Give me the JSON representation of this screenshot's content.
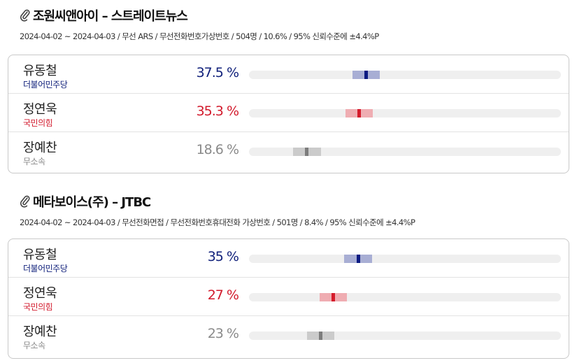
{
  "colors": {
    "dem_text": "#0f1f7a",
    "dem_band": "#a8aed4",
    "dem_point": "#0b1a82",
    "ppp_text": "#d21a2c",
    "ppp_band": "#efadb2",
    "ppp_point": "#d51b2b",
    "ind_text": "#8a8a8a",
    "ind_band": "#cbcbcb",
    "ind_point": "#7c7c7c",
    "track": "#efefef",
    "border": "#c9c9c9"
  },
  "scale_max_percent": 100,
  "margin_of_error": 4.4,
  "polls": [
    {
      "title": "조원씨앤아이 – 스트레이트뉴스",
      "meta": "2024-04-02 ~ 2024-04-03 / 무선 ARS / 무선전화번호가상번호 / 504명 / 10.6% / 95% 신뢰수준에 ±4.4%P",
      "candidates": [
        {
          "name": "유동철",
          "party": "더불어민주당",
          "value_text": "37.5 %",
          "value": 37.5,
          "color_key": "dem"
        },
        {
          "name": "정연욱",
          "party": "국민의힘",
          "value_text": "35.3 %",
          "value": 35.3,
          "color_key": "ppp"
        },
        {
          "name": "장예찬",
          "party": "무소속",
          "value_text": "18.6 %",
          "value": 18.6,
          "color_key": "ind"
        }
      ]
    },
    {
      "title": "메타보이스(주) – JTBC",
      "meta": "2024-04-02 ~ 2024-04-03 / 무선전화면접 / 무선전화번호휴대전화 가상번호 / 501명 / 8.4% / 95% 신뢰수준에 ±4.4%P",
      "candidates": [
        {
          "name": "유동철",
          "party": "더불어민주당",
          "value_text": "35 %",
          "value": 35,
          "color_key": "dem"
        },
        {
          "name": "정연욱",
          "party": "국민의힘",
          "value_text": "27 %",
          "value": 27,
          "color_key": "ppp"
        },
        {
          "name": "장예찬",
          "party": "무소속",
          "value_text": "23 %",
          "value": 23,
          "color_key": "ind"
        }
      ]
    }
  ]
}
